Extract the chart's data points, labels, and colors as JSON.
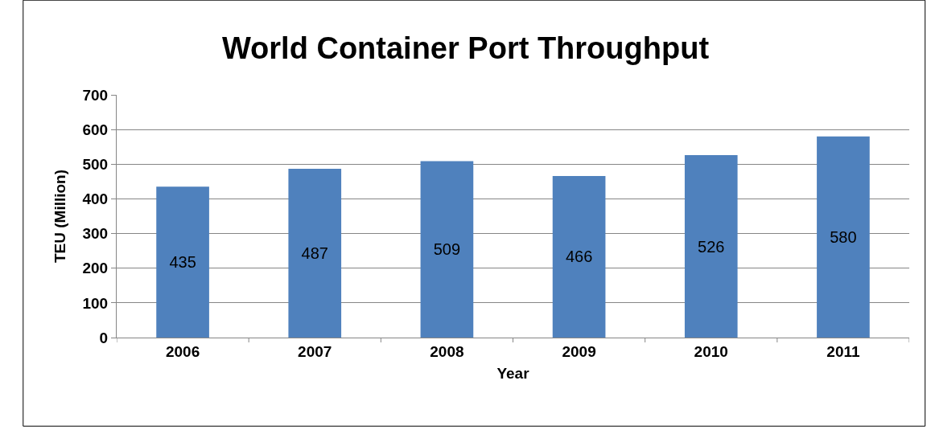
{
  "chart_data": {
    "type": "bar",
    "title": "World Container Port Throughput",
    "xlabel": "Year",
    "ylabel": "TEU (Million)",
    "categories": [
      "2006",
      "2007",
      "2008",
      "2009",
      "2010",
      "2011"
    ],
    "values": [
      435,
      487,
      509,
      466,
      526,
      580
    ],
    "color": "#4f81bd",
    "ylim": [
      0,
      700
    ],
    "yticks": [
      0,
      100,
      200,
      300,
      400,
      500,
      600,
      700
    ],
    "grid": "y",
    "data_labels": true,
    "legend": false
  }
}
